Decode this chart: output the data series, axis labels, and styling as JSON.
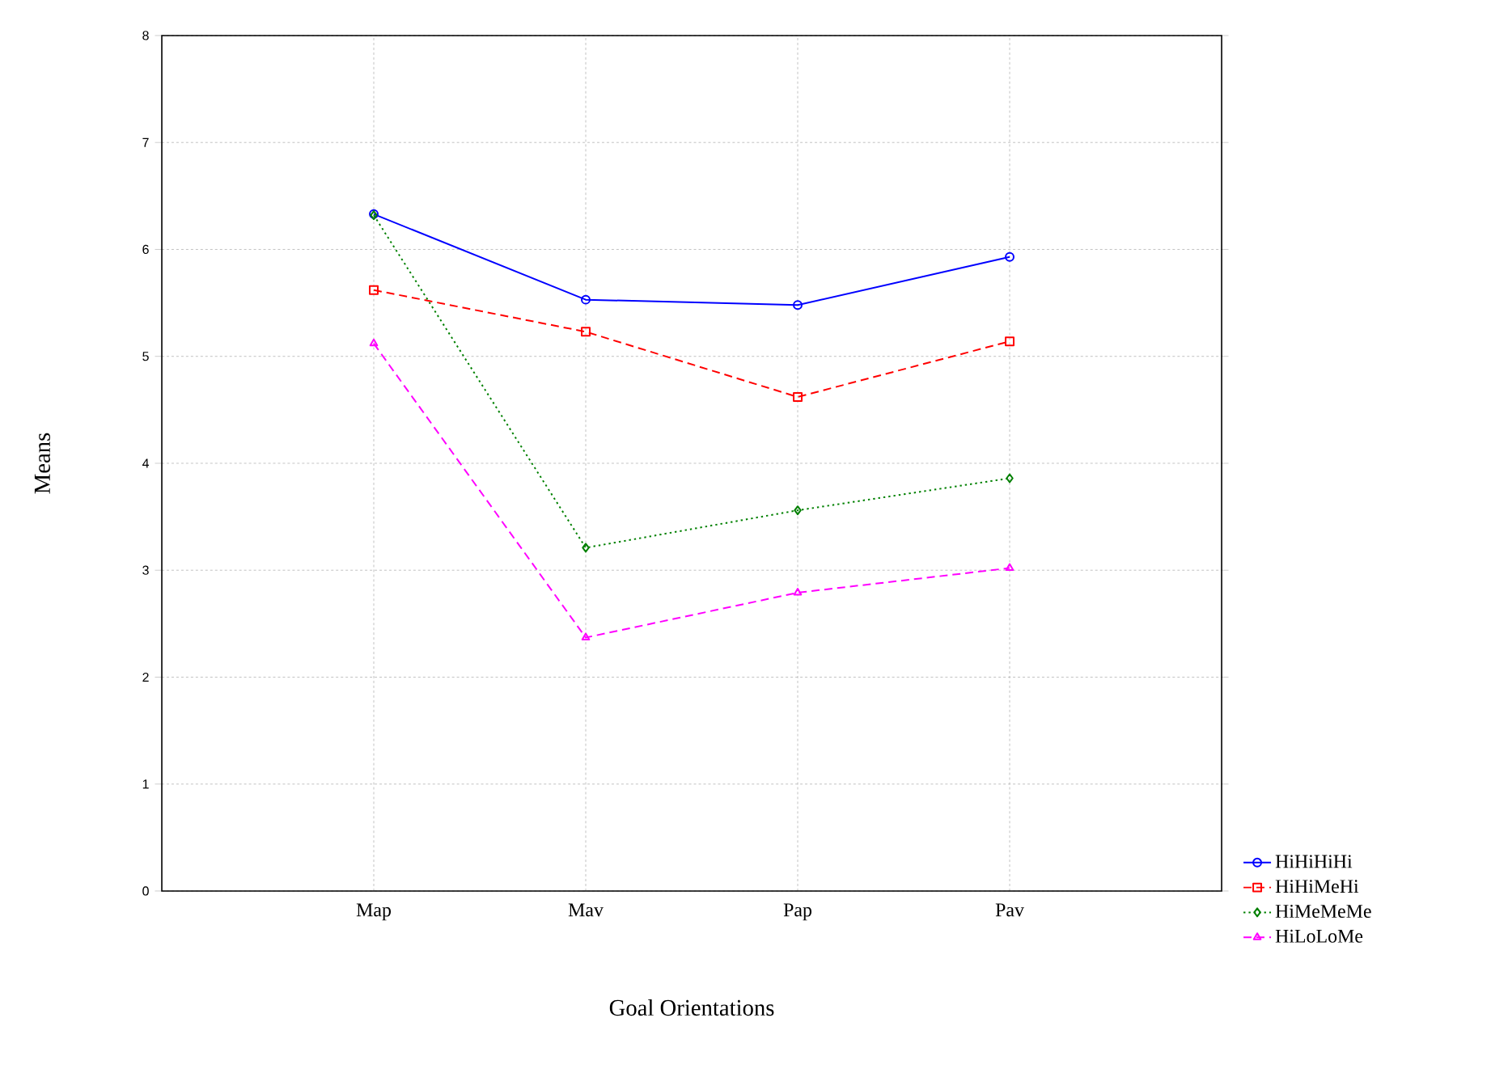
{
  "chart_data": {
    "type": "line",
    "xlabel": "Goal Orientations",
    "ylabel": "Means",
    "categories": [
      "Map",
      "Mav",
      "Pap",
      "Pav"
    ],
    "series": [
      {
        "name": "HiHiHiHi",
        "color": "#0000ff",
        "marker": "circle",
        "line_style": "solid",
        "values": [
          6.33,
          5.53,
          5.48,
          5.93
        ]
      },
      {
        "name": "HiHiMeHi",
        "color": "#ff0000",
        "marker": "square",
        "line_style": "dashed",
        "values": [
          5.62,
          5.23,
          4.62,
          5.14
        ]
      },
      {
        "name": "HiMeMeMe",
        "color": "#008000",
        "marker": "diamond",
        "line_style": "dotted",
        "values": [
          6.32,
          3.21,
          3.56,
          3.86
        ]
      },
      {
        "name": "HiLoLoMe",
        "color": "#ff00ff",
        "marker": "triangle",
        "line_style": "dashed",
        "values": [
          5.12,
          2.37,
          2.79,
          3.02
        ]
      }
    ],
    "ylim": [
      0,
      8
    ],
    "yticks": [
      0,
      1,
      2,
      3,
      4,
      5,
      6,
      7,
      8
    ],
    "grid": true,
    "legend": "bottom right"
  }
}
